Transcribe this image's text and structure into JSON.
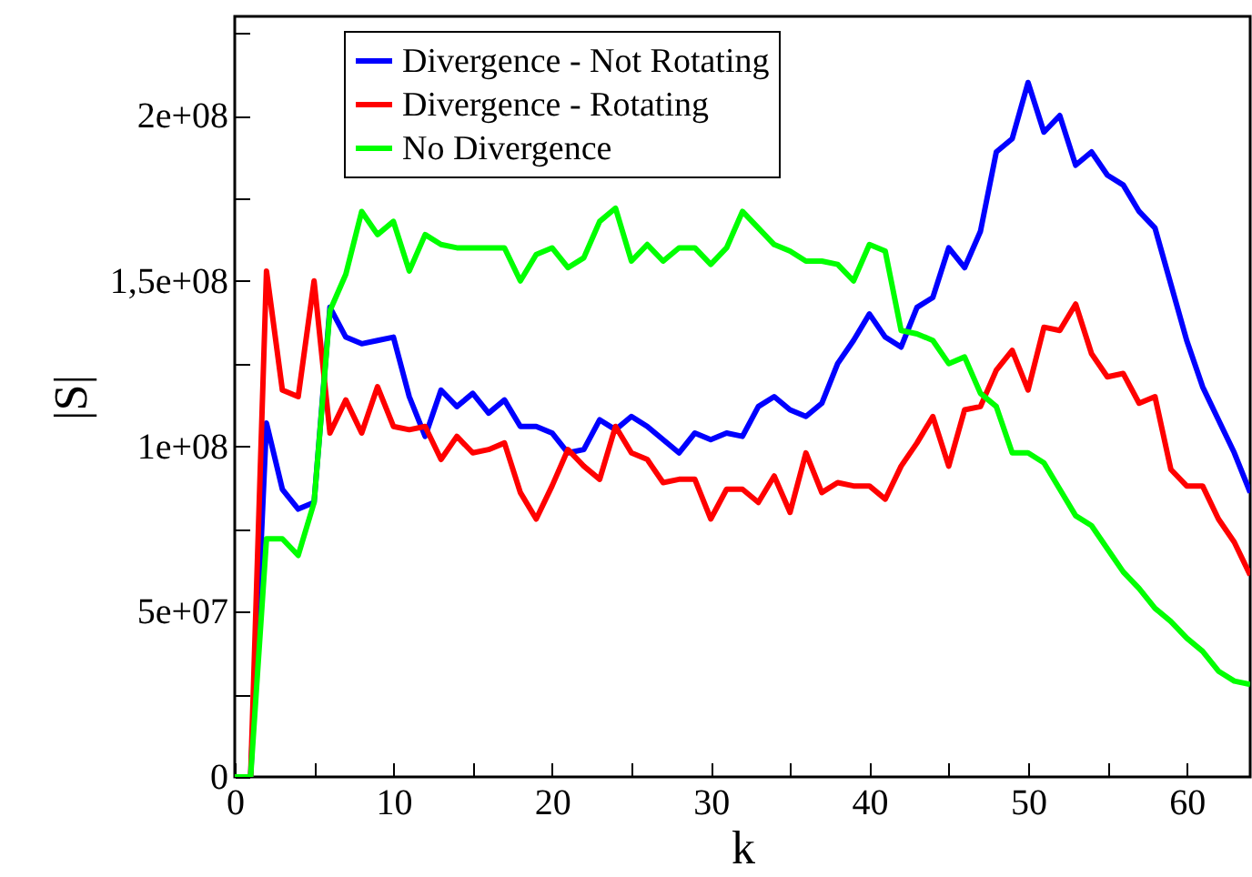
{
  "chart_data": {
    "type": "line",
    "xlabel": "k",
    "ylabel": "|S|",
    "x": [
      0,
      1,
      2,
      3,
      4,
      5,
      6,
      7,
      8,
      9,
      10,
      11,
      12,
      13,
      14,
      15,
      16,
      17,
      18,
      19,
      20,
      21,
      22,
      23,
      24,
      25,
      26,
      27,
      28,
      29,
      30,
      31,
      32,
      33,
      34,
      35,
      36,
      37,
      38,
      39,
      40,
      41,
      42,
      43,
      44,
      45,
      46,
      47,
      48,
      49,
      50,
      51,
      52,
      53,
      54,
      55,
      56,
      57,
      58,
      59,
      60,
      61,
      62,
      63,
      64
    ],
    "series": [
      {
        "name": "Divergence - Not Rotating",
        "color": "#0000ff",
        "values": [
          0,
          0,
          107000000.0,
          87000000.0,
          81000000.0,
          83000000.0,
          142000000.0,
          133000000.0,
          131000000.0,
          132000000.0,
          133000000.0,
          115000000.0,
          103000000.0,
          117000000.0,
          112000000.0,
          116000000.0,
          110000000.0,
          114000000.0,
          106000000.0,
          106000000.0,
          104000000.0,
          98000000.0,
          99000000.0,
          108000000.0,
          105000000.0,
          109000000.0,
          106000000.0,
          102000000.0,
          98000000.0,
          104000000.0,
          102000000.0,
          104000000.0,
          103000000.0,
          112000000.0,
          115000000.0,
          111000000.0,
          109000000.0,
          113000000.0,
          125000000.0,
          132000000.0,
          140000000.0,
          133000000.0,
          130000000.0,
          142000000.0,
          145000000.0,
          160000000.0,
          154000000.0,
          165000000.0,
          189000000.0,
          193000000.0,
          210000000.0,
          195000000.0,
          200000000.0,
          185000000.0,
          189000000.0,
          182000000.0,
          179000000.0,
          171000000.0,
          166000000.0,
          149000000.0,
          132000000.0,
          118000000.0,
          108000000.0,
          98000000.0,
          86000000.0
        ]
      },
      {
        "name": "Divergence - Rotating",
        "color": "#ff0000",
        "values": [
          0,
          0,
          153000000.0,
          117000000.0,
          115000000.0,
          150000000.0,
          104000000.0,
          114000000.0,
          104000000.0,
          118000000.0,
          106000000.0,
          105000000.0,
          106000000.0,
          96000000.0,
          103000000.0,
          98000000.0,
          99000000.0,
          101000000.0,
          86000000.0,
          78000000.0,
          88000000.0,
          99000000.0,
          94000000.0,
          90000000.0,
          106000000.0,
          98000000.0,
          96000000.0,
          89000000.0,
          90000000.0,
          90000000.0,
          78000000.0,
          87000000.0,
          87000000.0,
          83000000.0,
          91000000.0,
          80000000.0,
          98000000.0,
          86000000.0,
          89000000.0,
          88000000.0,
          88000000.0,
          84000000.0,
          94000000.0,
          101000000.0,
          109000000.0,
          94000000.0,
          111000000.0,
          112000000.0,
          123000000.0,
          129000000.0,
          117000000.0,
          136000000.0,
          135000000.0,
          143000000.0,
          128000000.0,
          121000000.0,
          122000000.0,
          113000000.0,
          115000000.0,
          93000000.0,
          88000000.0,
          88000000.0,
          78000000.0,
          71000000.0,
          61000000.0
        ]
      },
      {
        "name": "No Divergence",
        "color": "#00ff00",
        "values": [
          0,
          0,
          72000000.0,
          72000000.0,
          67000000.0,
          83000000.0,
          141000000.0,
          152000000.0,
          171000000.0,
          164000000.0,
          168000000.0,
          153000000.0,
          164000000.0,
          161000000.0,
          160000000.0,
          160000000.0,
          160000000.0,
          160000000.0,
          150000000.0,
          158000000.0,
          160000000.0,
          154000000.0,
          157000000.0,
          168000000.0,
          172000000.0,
          156000000.0,
          161000000.0,
          156000000.0,
          160000000.0,
          160000000.0,
          155000000.0,
          160000000.0,
          171000000.0,
          166000000.0,
          161000000.0,
          159000000.0,
          156000000.0,
          156000000.0,
          155000000.0,
          150000000.0,
          161000000.0,
          159000000.0,
          135000000.0,
          134000000.0,
          132000000.0,
          125000000.0,
          127000000.0,
          116000000.0,
          112000000.0,
          98000000.0,
          98000000.0,
          95000000.0,
          87000000.0,
          79000000.0,
          76000000.0,
          69000000.0,
          62000000.0,
          57000000.0,
          51000000.0,
          47000000.0,
          42000000.0,
          38000000.0,
          32000000.0,
          29000000.0,
          28000000.0
        ]
      }
    ],
    "xlim": [
      0,
      64
    ],
    "xticks": [
      0,
      {
        "value": 5,
        "label": null
      },
      10,
      {
        "value": 15,
        "label": null
      },
      20,
      {
        "value": 25,
        "label": null
      },
      30,
      {
        "value": 35,
        "label": null
      },
      40,
      {
        "value": 45,
        "label": null
      },
      50,
      {
        "value": 55,
        "label": null
      },
      60
    ],
    "ylim": [
      0,
      230000000.0
    ],
    "yticks": [
      {
        "value": 0,
        "label": "0"
      },
      {
        "value": 25000000.0,
        "label": null
      },
      {
        "value": 50000000.0,
        "label": "5e+07"
      },
      {
        "value": 75000000.0,
        "label": null
      },
      {
        "value": 100000000.0,
        "label": "1e+08"
      },
      {
        "value": 125000000.0,
        "label": null
      },
      {
        "value": 150000000.0,
        "label": "1,5e+08"
      },
      {
        "value": 175000000.0,
        "label": null
      },
      {
        "value": 200000000.0,
        "label": "2e+08"
      },
      {
        "value": 225000000.0,
        "label": null
      }
    ],
    "legend": "top left",
    "grid": false,
    "marker": "none",
    "line_style": "solid"
  }
}
